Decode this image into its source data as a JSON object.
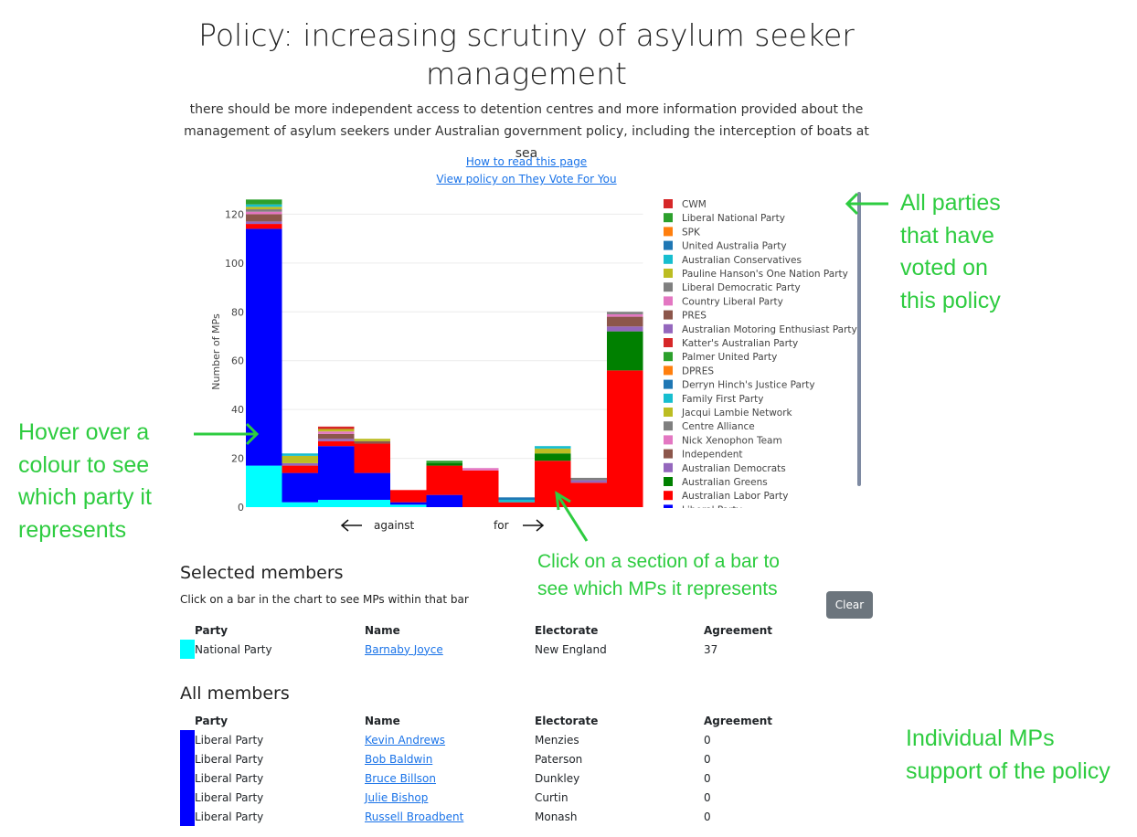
{
  "header": {
    "title": "Policy: increasing scrutiny of asylum seeker management",
    "description": "there should be more independent access to detention centres and more information provided about the management of asylum seekers under Australian government policy, including the interception of boats at sea",
    "links": [
      "How to read this page",
      "View policy on They Vote For You"
    ]
  },
  "chart_data": {
    "type": "bar",
    "stacked": true,
    "ylabel": "Number of MPs",
    "ylim": [
      0,
      128
    ],
    "yticks": [
      0,
      20,
      40,
      60,
      80,
      100,
      120
    ],
    "direction_labels": {
      "left": "against",
      "right": "for"
    },
    "grid": true,
    "legend_position": "right",
    "bins": 11,
    "series": [
      {
        "name": "National Party",
        "color": "#00ffff",
        "values": [
          17,
          2,
          3,
          3,
          1,
          0,
          0,
          0,
          0,
          0,
          0
        ]
      },
      {
        "name": "Liberal Party",
        "color": "#0000ff",
        "values": [
          97,
          12,
          22,
          11,
          1,
          5,
          0,
          0,
          0,
          0,
          0
        ]
      },
      {
        "name": "Australian Labor Party",
        "color": "#ff0000",
        "values": [
          2,
          3,
          2,
          12,
          5,
          12,
          15,
          2,
          19,
          10,
          56
        ]
      },
      {
        "name": "Australian Greens",
        "color": "#008000",
        "values": [
          0,
          0,
          0,
          0,
          0,
          1,
          0,
          0,
          3,
          0,
          16
        ]
      },
      {
        "name": "Australian Democrats",
        "color": "#9467bd",
        "values": [
          1,
          1,
          1,
          0,
          0,
          0,
          0,
          0,
          0,
          1,
          2
        ]
      },
      {
        "name": "Independent",
        "color": "#8c564b",
        "values": [
          3,
          0,
          2,
          1,
          0,
          0,
          0,
          0,
          0,
          0,
          4
        ]
      },
      {
        "name": "Nick Xenophon Team",
        "color": "#e377c2",
        "values": [
          1,
          0,
          1,
          0,
          0,
          0,
          1,
          0,
          0,
          0,
          1
        ]
      },
      {
        "name": "Centre Alliance",
        "color": "#7f7f7f",
        "values": [
          1,
          0,
          0,
          0,
          0,
          0,
          0,
          0,
          0,
          1,
          1
        ]
      },
      {
        "name": "Jacqui Lambie Network",
        "color": "#bcbd22",
        "values": [
          1,
          3,
          1,
          1,
          0,
          0,
          0,
          0,
          2,
          0,
          0
        ]
      },
      {
        "name": "Family First Party",
        "color": "#17becf",
        "values": [
          1,
          1,
          0,
          0,
          0,
          0,
          0,
          1,
          1,
          0,
          0
        ]
      },
      {
        "name": "Derryn Hinch's Justice Party",
        "color": "#1f77b4",
        "values": [
          0,
          0,
          0,
          0,
          0,
          0,
          0,
          1,
          0,
          0,
          0
        ]
      },
      {
        "name": "DPRES",
        "color": "#ff7f0e",
        "values": [
          0,
          0,
          0,
          0,
          0,
          0,
          0,
          0,
          0,
          0,
          0
        ]
      },
      {
        "name": "Palmer United Party",
        "color": "#2ca02c",
        "values": [
          1,
          0,
          0,
          0,
          0,
          1,
          0,
          0,
          0,
          0,
          0
        ]
      },
      {
        "name": "Katter's Australian Party",
        "color": "#d62728",
        "values": [
          0,
          0,
          1,
          0,
          0,
          0,
          0,
          0,
          0,
          0,
          0
        ]
      },
      {
        "name": "Australian Motoring Enthusiast Party",
        "color": "#9467bd",
        "values": [
          0,
          0,
          0,
          0,
          0,
          0,
          0,
          0,
          0,
          0,
          0
        ]
      },
      {
        "name": "PRES",
        "color": "#8c564b",
        "values": [
          0,
          0,
          0,
          0,
          0,
          0,
          0,
          0,
          0,
          0,
          0
        ]
      },
      {
        "name": "Country Liberal Party",
        "color": "#e377c2",
        "values": [
          0,
          0,
          0,
          0,
          0,
          0,
          0,
          0,
          0,
          0,
          0
        ]
      },
      {
        "name": "Liberal Democratic Party",
        "color": "#7f7f7f",
        "values": [
          0,
          0,
          0,
          0,
          0,
          0,
          0,
          0,
          0,
          0,
          0
        ]
      },
      {
        "name": "Pauline Hanson's One Nation Party",
        "color": "#bcbd22",
        "values": [
          0,
          0,
          0,
          0,
          0,
          0,
          0,
          0,
          0,
          0,
          0
        ]
      },
      {
        "name": "Australian Conservatives",
        "color": "#17becf",
        "values": [
          0,
          0,
          0,
          0,
          0,
          0,
          0,
          0,
          0,
          0,
          0
        ]
      },
      {
        "name": "United Australia Party",
        "color": "#1f77b4",
        "values": [
          0,
          0,
          0,
          0,
          0,
          0,
          0,
          0,
          0,
          0,
          0
        ]
      },
      {
        "name": "SPK",
        "color": "#ff7f0e",
        "values": [
          0,
          0,
          0,
          0,
          0,
          0,
          0,
          0,
          0,
          0,
          0
        ]
      },
      {
        "name": "Liberal National Party",
        "color": "#2ca02c",
        "values": [
          1,
          0,
          0,
          0,
          0,
          0,
          0,
          0,
          0,
          0,
          0
        ]
      },
      {
        "name": "CWM",
        "color": "#d62728",
        "values": [
          0,
          0,
          0,
          0,
          0,
          0,
          0,
          0,
          0,
          0,
          0
        ]
      }
    ],
    "legend": [
      "CWM",
      "Liberal National Party",
      "SPK",
      "United Australia Party",
      "Australian Conservatives",
      "Pauline Hanson's One Nation Party",
      "Liberal Democratic Party",
      "Country Liberal Party",
      "PRES",
      "Australian Motoring Enthusiast Party",
      "Katter's Australian Party",
      "Palmer United Party",
      "DPRES",
      "Derryn Hinch's Justice Party",
      "Family First Party",
      "Jacqui Lambie Network",
      "Centre Alliance",
      "Nick Xenophon Team",
      "Independent",
      "Australian Democrats",
      "Australian Greens",
      "Australian Labor Party"
    ],
    "legend_partial": "Liberal Party"
  },
  "annotations": {
    "parties": [
      "All parties",
      "that have",
      "voted on",
      "this policy"
    ],
    "hover": [
      "Hover over a",
      "colour to see",
      "which party it",
      "represents"
    ],
    "click": [
      "Click on a section of a bar to",
      "see which MPs it represents"
    ],
    "mps": [
      "Individual MPs",
      "support of the policy"
    ],
    "color": "#2ecc40"
  },
  "selected": {
    "heading": "Selected members",
    "help": "Click on a bar in the chart to see MPs within that bar",
    "clear_label": "Clear",
    "columns": [
      "Party",
      "Name",
      "Electorate",
      "Agreement"
    ],
    "rows": [
      {
        "party": "National Party",
        "color": "#00ffff",
        "name": "Barnaby Joyce",
        "electorate": "New England",
        "agreement": "37"
      }
    ]
  },
  "all": {
    "heading": "All members",
    "columns": [
      "Party",
      "Name",
      "Electorate",
      "Agreement"
    ],
    "rows": [
      {
        "party": "Liberal Party",
        "color": "#0000ff",
        "name": "Kevin Andrews",
        "electorate": "Menzies",
        "agreement": "0"
      },
      {
        "party": "Liberal Party",
        "color": "#0000ff",
        "name": "Bob Baldwin",
        "electorate": "Paterson",
        "agreement": "0"
      },
      {
        "party": "Liberal Party",
        "color": "#0000ff",
        "name": "Bruce Billson",
        "electorate": "Dunkley",
        "agreement": "0"
      },
      {
        "party": "Liberal Party",
        "color": "#0000ff",
        "name": "Julie Bishop",
        "electorate": "Curtin",
        "agreement": "0"
      },
      {
        "party": "Liberal Party",
        "color": "#0000ff",
        "name": "Russell Broadbent",
        "electorate": "Monash",
        "agreement": "0"
      }
    ]
  }
}
